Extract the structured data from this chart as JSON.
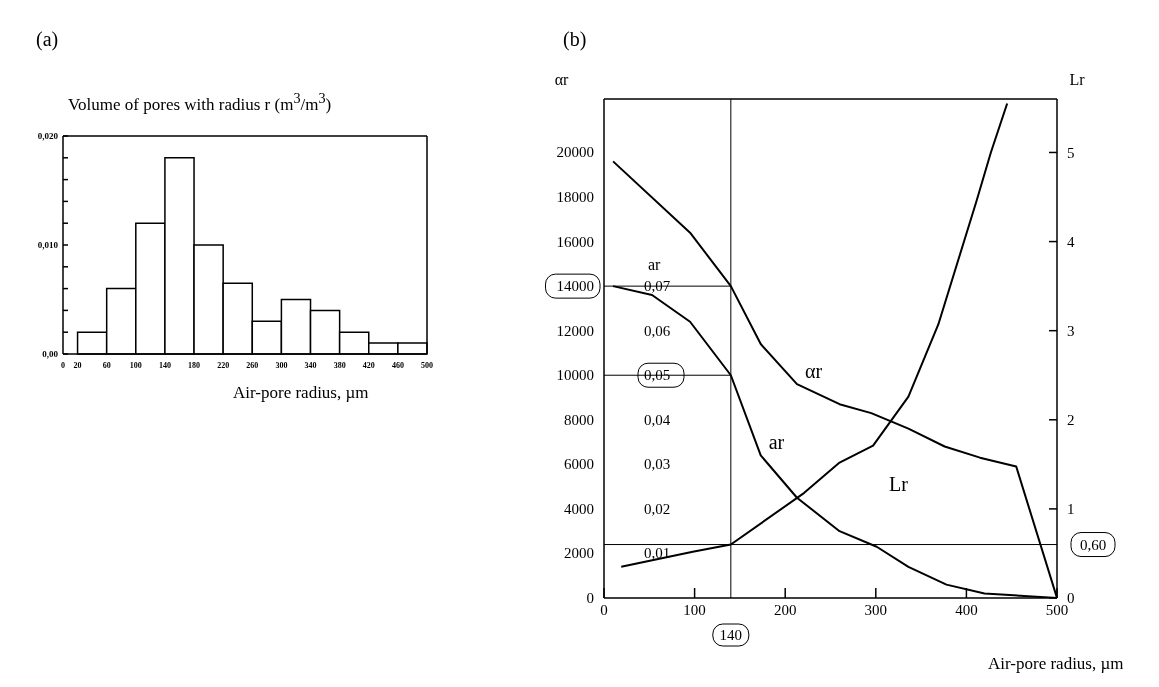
{
  "chart_data": [
    {
      "type": "histogram",
      "title": "(a)",
      "ylabel": "Volume of pores with radius r (m$^{3}$/m$^{3}$)",
      "xlabel": "Air-pore radius, µm",
      "bins": [
        20,
        60,
        100,
        140,
        180,
        220,
        260,
        300,
        340,
        380,
        420,
        460,
        500
      ],
      "values": [
        0.002,
        0.006,
        0.012,
        0.018,
        0.01,
        0.0065,
        0.003,
        0.005,
        0.004,
        0.002,
        0.001,
        0.001
      ],
      "color": "#ffffff",
      "xlim": [
        0,
        500
      ],
      "xticks": [
        0,
        20,
        60,
        100,
        140,
        180,
        220,
        260,
        300,
        340,
        380,
        420,
        460,
        500
      ],
      "ylim": [
        0,
        0.02
      ],
      "yticks": [
        {
          "value": 0,
          "label": "0,00"
        },
        {
          "value": 0.002,
          "label": null
        },
        {
          "value": 0.004,
          "label": null
        },
        {
          "value": 0.006,
          "label": null
        },
        {
          "value": 0.008,
          "label": null
        },
        {
          "value": 0.01,
          "label": "0,010"
        },
        {
          "value": 0.012,
          "label": null
        },
        {
          "value": 0.014,
          "label": null
        },
        {
          "value": 0.016,
          "label": null
        },
        {
          "value": 0.018,
          "label": null
        },
        {
          "value": 0.02,
          "label": "0,020"
        }
      ]
    },
    {
      "type": "line",
      "title": "(b)",
      "xlabel": "Air-pore radius, µm",
      "ylabel": "αr",
      "y2label": "Lr",
      "y3label": "ar",
      "xlim": [
        0,
        500
      ],
      "xticks": [
        0,
        100,
        200,
        300,
        400,
        500
      ],
      "ylim": [
        0,
        22400
      ],
      "yticks": [
        0,
        2000,
        4000,
        6000,
        8000,
        10000,
        12000,
        14000,
        16000,
        18000,
        20000
      ],
      "y2lim": [
        0,
        5.6
      ],
      "y2ticks": [
        0,
        1,
        2,
        3,
        4,
        5
      ],
      "y3lim": [
        0,
        0.112
      ],
      "y3ticks": [
        {
          "value": 0.01,
          "label": "0,01"
        },
        {
          "value": 0.02,
          "label": "0,02"
        },
        {
          "value": 0.03,
          "label": "0,03"
        },
        {
          "value": 0.04,
          "label": "0,04"
        },
        {
          "value": 0.05,
          "label": "0,05"
        },
        {
          "value": 0.06,
          "label": "0,06"
        },
        {
          "value": 0.07,
          "label": "0,07"
        }
      ],
      "series": [
        {
          "name": "αr",
          "color": "#000000",
          "x": [
            10,
            95,
            140,
            173,
            213,
            260,
            295,
            336,
            376,
            415,
            455,
            500
          ],
          "values": [
            19600,
            16400,
            14000,
            11400,
            9600,
            8700,
            8300,
            7600,
            6800,
            6300,
            5900,
            0
          ]
        },
        {
          "name": "ar",
          "color": "#000000",
          "axis": "y3",
          "x": [
            10,
            53,
            95,
            140,
            173,
            213,
            260,
            301,
            336,
            378,
            420,
            500
          ],
          "values": [
            0.07,
            0.068,
            0.062,
            0.05,
            0.032,
            0.0225,
            0.015,
            0.0115,
            0.007,
            0.003,
            0.001,
            0
          ]
        },
        {
          "name": "Lr",
          "color": "#000000",
          "axis": "y2",
          "x": [
            19,
            98,
            140,
            221,
            260,
            297,
            336,
            369,
            411,
            427,
            445
          ],
          "values": [
            0.35,
            0.52,
            0.6,
            1.18,
            1.52,
            1.71,
            2.26,
            3.07,
            4.45,
            5.0,
            5.55
          ]
        }
      ],
      "ref_lines": [
        {
          "axis": "x",
          "value": 140,
          "label": "140"
        },
        {
          "axis": "y",
          "value": 14000
        },
        {
          "axis": "y3",
          "value": 0.05
        },
        {
          "axis": "y2",
          "value": 0.6,
          "label": "0,60"
        }
      ]
    }
  ]
}
